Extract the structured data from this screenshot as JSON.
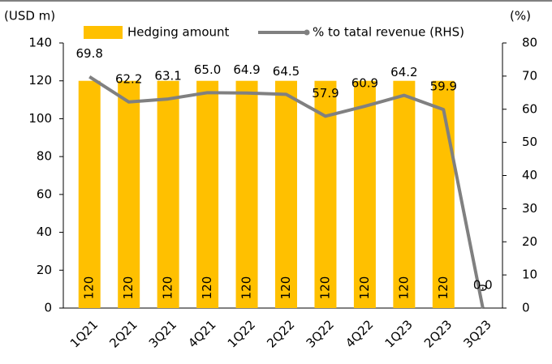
{
  "chart_data": {
    "type": "bar_line",
    "ylabel": "(USD m)",
    "y2label": "(%)",
    "categories": [
      "1Q21",
      "2Q21",
      "3Q21",
      "4Q21",
      "1Q22",
      "2Q22",
      "3Q22",
      "4Q22",
      "1Q23",
      "2Q23",
      "3Q23"
    ],
    "series": [
      {
        "name": "Hedging amount",
        "type": "bar",
        "color": "#ffc000",
        "values": [
          120,
          120,
          120,
          120,
          120,
          120,
          120,
          120,
          120,
          120,
          0
        ]
      },
      {
        "name": "% to tatal revenue (RHS)",
        "type": "line",
        "axis": "y2",
        "color": "#808080",
        "values": [
          69.8,
          62.2,
          63.1,
          65.0,
          64.9,
          64.5,
          57.9,
          60.9,
          64.2,
          59.9,
          0.0
        ],
        "value_labels": [
          "69.8",
          "62.2",
          "63.1",
          "65.0",
          "64.9",
          "64.5",
          "57.9",
          "60.9",
          "64.2",
          "59.9",
          "0.0"
        ]
      }
    ],
    "ylim": [
      0,
      140
    ],
    "yticks": [
      0,
      20,
      40,
      60,
      80,
      100,
      120,
      140
    ],
    "y2lim": [
      0,
      80
    ],
    "y2ticks": [
      0,
      10,
      20,
      30,
      40,
      50,
      60,
      70,
      80
    ],
    "legend": "top"
  }
}
